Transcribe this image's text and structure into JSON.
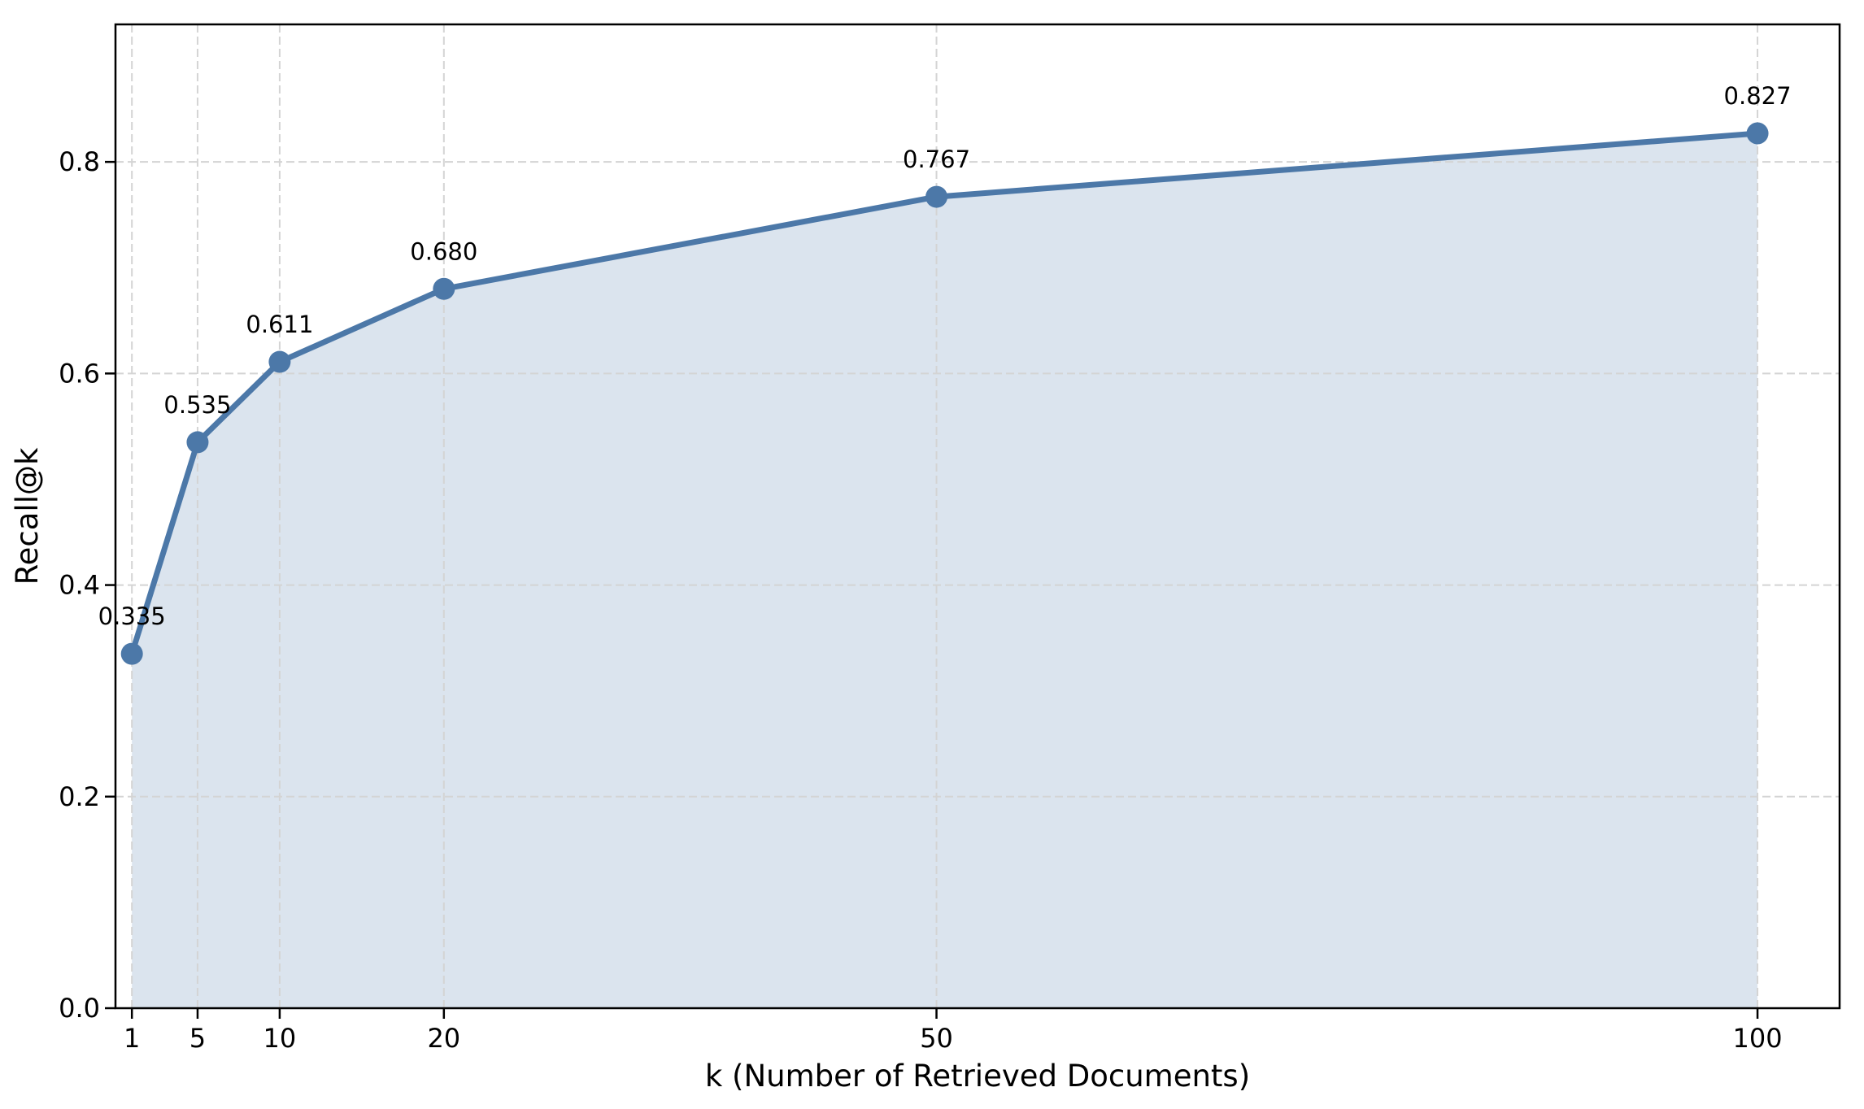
{
  "figure": {
    "background": "#ffffff"
  },
  "chart_data": {
    "type": "area",
    "title": "",
    "xlabel": "k (Number of Retrieved Documents)",
    "ylabel": "Recall@k",
    "x": [
      1,
      5,
      10,
      20,
      50,
      100
    ],
    "y": [
      0.335,
      0.535,
      0.611,
      0.68,
      0.767,
      0.827
    ],
    "point_labels": [
      "0.335",
      "0.535",
      "0.611",
      "0.680",
      "0.767",
      "0.827"
    ],
    "xticks": {
      "values": [
        1,
        5,
        10,
        20,
        50,
        100
      ],
      "labels": [
        "1",
        "5",
        "10",
        "20",
        "50",
        "100"
      ]
    },
    "yticks": {
      "values": [
        0.0,
        0.2,
        0.4,
        0.6,
        0.8
      ],
      "labels": [
        "0.0",
        "0.2",
        "0.4",
        "0.6",
        "0.8"
      ]
    },
    "xlim": [
      0,
      105
    ],
    "ylim": [
      0,
      0.93
    ],
    "grid": {
      "visible": true,
      "style": "dashed",
      "color": "#d4d4d4"
    },
    "legend": {
      "visible": false
    },
    "colors": {
      "line": "#4C78A8",
      "marker": "#4C78A8",
      "fill": "#4C78A8",
      "fill_opacity": 0.2,
      "spine": "#000000",
      "text": "#000000"
    }
  }
}
